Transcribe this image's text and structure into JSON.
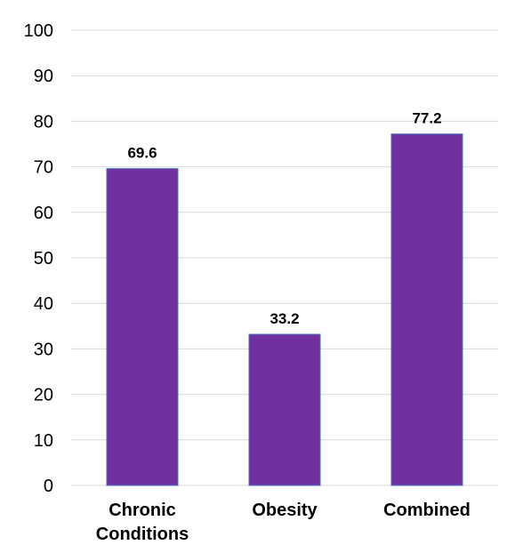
{
  "chart_data": {
    "type": "bar",
    "title": "",
    "xlabel": "",
    "ylabel": "",
    "categories": [
      [
        "Chronic",
        "Conditions"
      ],
      [
        "Obesity"
      ],
      [
        "Combined"
      ]
    ],
    "values": [
      69.6,
      33.2,
      77.2
    ],
    "data_labels": [
      "69.6",
      "33.2",
      "77.2"
    ],
    "ylim": [
      0,
      100
    ],
    "yticks": [
      0,
      10,
      20,
      30,
      40,
      50,
      60,
      70,
      80,
      90,
      100
    ],
    "grid": true,
    "legend": "none",
    "bar_color": "#7030a0",
    "bar_outline_color": "#4472c4"
  }
}
